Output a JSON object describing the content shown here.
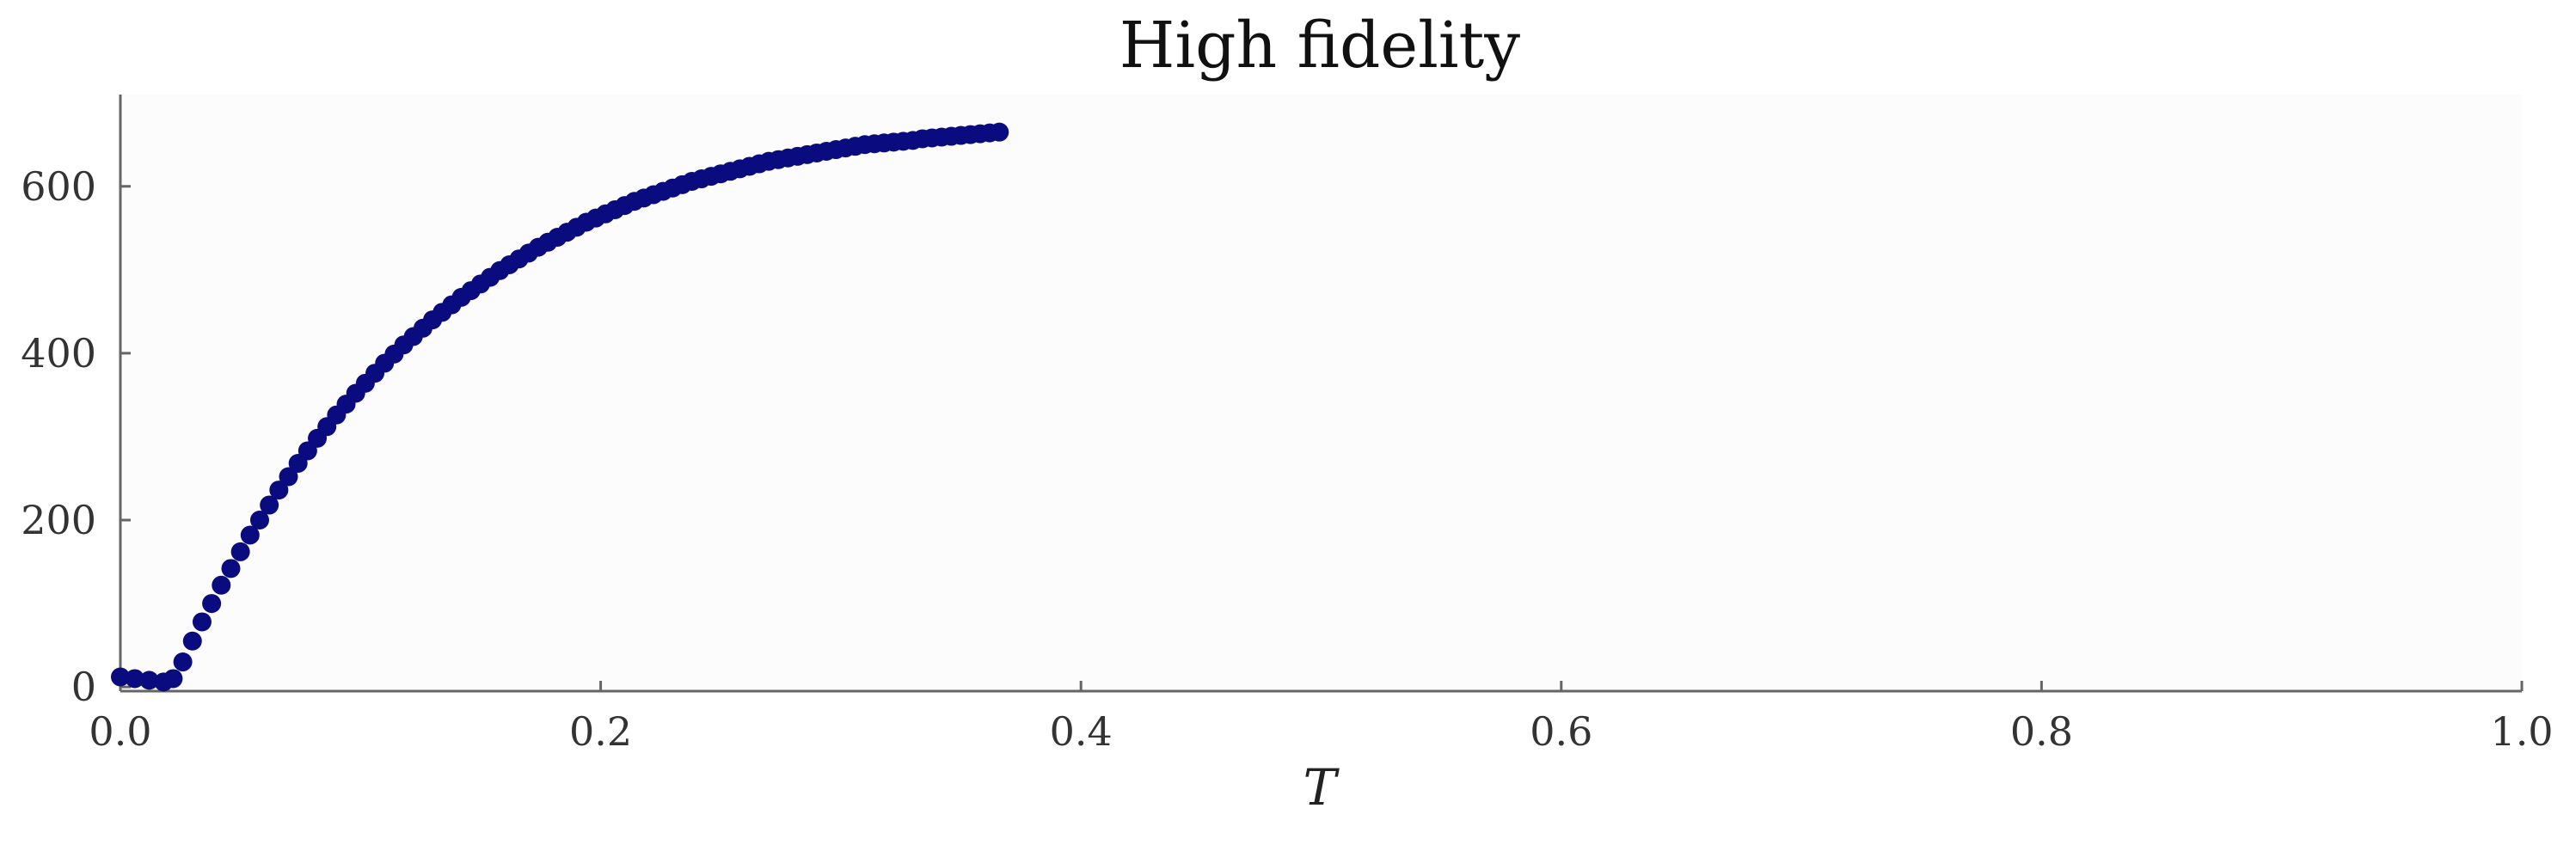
{
  "chart_data": {
    "type": "scatter",
    "title": "High fidelity",
    "xlabel": "T",
    "ylabel": "",
    "xlim": [
      0.0,
      1.0
    ],
    "ylim": [
      -5,
      710
    ],
    "xticks": [
      "0.0",
      "0.2",
      "0.4",
      "0.6",
      "0.8",
      "1.0"
    ],
    "xtick_values": [
      0.0,
      0.2,
      0.4,
      0.6,
      0.8,
      1.0
    ],
    "yticks": [
      "0",
      "200",
      "400",
      "600"
    ],
    "ytick_values": [
      0,
      200,
      400,
      600
    ],
    "grid": false,
    "legend": "none",
    "colors": {
      "series": "#0b0b80",
      "plot_bg": "#fcfcfc",
      "axis": "#666666"
    },
    "series": [
      {
        "x": [
          0.0,
          0.006,
          0.012,
          0.018,
          0.022,
          0.026,
          0.03,
          0.034,
          0.038,
          0.042,
          0.046,
          0.05,
          0.054,
          0.058,
          0.062,
          0.066,
          0.07,
          0.074,
          0.078,
          0.082,
          0.086,
          0.09,
          0.094,
          0.098,
          0.102,
          0.106,
          0.11,
          0.114,
          0.118,
          0.122,
          0.126,
          0.13,
          0.134,
          0.138,
          0.142,
          0.146,
          0.15,
          0.154,
          0.158,
          0.162,
          0.166,
          0.17,
          0.174,
          0.178,
          0.182,
          0.186,
          0.19,
          0.194,
          0.198,
          0.202,
          0.206,
          0.21,
          0.214,
          0.218,
          0.222,
          0.226,
          0.23,
          0.234,
          0.238,
          0.242,
          0.246,
          0.25,
          0.254,
          0.258,
          0.262,
          0.266,
          0.27,
          0.274,
          0.278,
          0.282,
          0.286,
          0.29,
          0.294,
          0.298,
          0.302,
          0.306,
          0.31,
          0.314,
          0.318,
          0.322,
          0.326,
          0.33,
          0.334,
          0.338,
          0.342,
          0.346,
          0.35,
          0.354,
          0.358,
          0.362,
          0.366
        ],
        "y": [
          12,
          10,
          8,
          6,
          10,
          30,
          55,
          78,
          100,
          122,
          142,
          162,
          182,
          200,
          218,
          236,
          252,
          268,
          283,
          298,
          312,
          326,
          339,
          352,
          364,
          376,
          388,
          399,
          410,
          420,
          430,
          440,
          449,
          458,
          467,
          475,
          483,
          491,
          499,
          506,
          513,
          520,
          527,
          533,
          539,
          545,
          551,
          557,
          562,
          567,
          572,
          577,
          582,
          586,
          590,
          594,
          598,
          602,
          606,
          609,
          612,
          615,
          618,
          621,
          624,
          627,
          630,
          632,
          634,
          636,
          638,
          640,
          642,
          644,
          646,
          648,
          650,
          651,
          652,
          653,
          654,
          655,
          657,
          658,
          659,
          660,
          661,
          662,
          663,
          664,
          665
        ]
      }
    ]
  }
}
